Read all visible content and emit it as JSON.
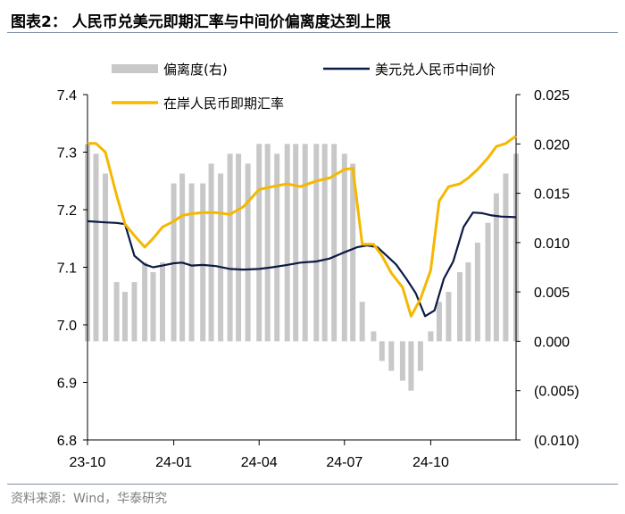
{
  "header": {
    "title": "图表2：  人民币兑美元即期汇率与中间价偏离度达到上限"
  },
  "footer": {
    "source": "资料来源：Wind，华泰研究"
  },
  "chart_data": {
    "type": "line",
    "title": "图表2：  人民币兑美元即期汇率与中间价偏离度达到上限",
    "left_axis": {
      "min": 6.8,
      "max": 7.4,
      "ticks": [
        "6.8",
        "6.9",
        "7.0",
        "7.1",
        "7.2",
        "7.3",
        "7.4"
      ]
    },
    "right_axis": {
      "min": -0.01,
      "max": 0.025,
      "ticks": [
        "(0.010)",
        "(0.005)",
        "0.000",
        "0.005",
        "0.010",
        "0.015",
        "0.020",
        "0.025"
      ]
    },
    "x_ticks": [
      "23-10",
      "24-01",
      "24-04",
      "24-07",
      "24-10"
    ],
    "x_range": [
      "2023-10-01",
      "2024-12-31"
    ],
    "grid": false,
    "legend_position": "top",
    "series": [
      {
        "name": "偏离度(右)",
        "type": "bar",
        "axis": "right",
        "color": "#c8c8c8",
        "x": [
          "2023-10-01",
          "2023-10-10",
          "2023-10-20",
          "2023-11-01",
          "2023-11-10",
          "2023-11-20",
          "2023-12-01",
          "2023-12-10",
          "2023-12-20",
          "2024-01-01",
          "2024-01-10",
          "2024-01-20",
          "2024-02-01",
          "2024-02-10",
          "2024-02-20",
          "2024-03-01",
          "2024-03-10",
          "2024-03-20",
          "2024-04-01",
          "2024-04-10",
          "2024-04-20",
          "2024-05-01",
          "2024-05-10",
          "2024-05-20",
          "2024-06-01",
          "2024-06-10",
          "2024-06-20",
          "2024-07-01",
          "2024-07-10",
          "2024-07-20",
          "2024-08-01",
          "2024-08-10",
          "2024-08-20",
          "2024-09-01",
          "2024-09-10",
          "2024-09-20",
          "2024-10-01",
          "2024-10-10",
          "2024-10-20",
          "2024-11-01",
          "2024-11-10",
          "2024-11-20",
          "2024-12-01",
          "2024-12-10",
          "2024-12-20",
          "2024-12-31"
        ],
        "values": [
          0.02,
          0.019,
          0.017,
          0.006,
          0.005,
          0.006,
          0.008,
          0.007,
          0.008,
          0.016,
          0.017,
          0.016,
          0.016,
          0.018,
          0.017,
          0.019,
          0.019,
          0.018,
          0.02,
          0.02,
          0.019,
          0.02,
          0.02,
          0.02,
          0.02,
          0.02,
          0.02,
          0.019,
          0.018,
          0.004,
          0.001,
          -0.002,
          -0.003,
          -0.004,
          -0.005,
          -0.003,
          0.001,
          0.004,
          0.005,
          0.007,
          0.008,
          0.01,
          0.012,
          0.015,
          0.017,
          0.019
        ]
      },
      {
        "name": "美元兑人民币中间价",
        "type": "line",
        "axis": "left",
        "color": "#0c1b45",
        "x": [
          "2023-10-01",
          "2023-10-20",
          "2023-11-01",
          "2023-11-10",
          "2023-11-20",
          "2023-12-01",
          "2023-12-10",
          "2023-12-20",
          "2024-01-01",
          "2024-01-10",
          "2024-01-20",
          "2024-02-01",
          "2024-02-15",
          "2024-03-01",
          "2024-03-15",
          "2024-04-01",
          "2024-04-15",
          "2024-05-01",
          "2024-05-15",
          "2024-06-01",
          "2024-06-15",
          "2024-07-01",
          "2024-07-15",
          "2024-07-25",
          "2024-08-05",
          "2024-08-15",
          "2024-08-25",
          "2024-09-05",
          "2024-09-15",
          "2024-09-25",
          "2024-10-05",
          "2024-10-15",
          "2024-10-25",
          "2024-11-05",
          "2024-11-15",
          "2024-11-25",
          "2024-12-05",
          "2024-12-15",
          "2024-12-31"
        ],
        "values": [
          7.18,
          7.178,
          7.177,
          7.175,
          7.12,
          7.105,
          7.1,
          7.103,
          7.107,
          7.108,
          7.103,
          7.104,
          7.102,
          7.097,
          7.096,
          7.097,
          7.1,
          7.104,
          7.108,
          7.11,
          7.115,
          7.126,
          7.135,
          7.138,
          7.135,
          7.12,
          7.105,
          7.08,
          7.055,
          7.015,
          7.025,
          7.08,
          7.11,
          7.17,
          7.195,
          7.194,
          7.19,
          7.188,
          7.187
        ]
      },
      {
        "name": "在岸人民币即期汇率",
        "type": "line",
        "axis": "left",
        "color": "#f5b800",
        "x": [
          "2023-10-01",
          "2023-10-10",
          "2023-10-20",
          "2023-11-01",
          "2023-11-10",
          "2023-11-20",
          "2023-12-01",
          "2023-12-10",
          "2023-12-20",
          "2024-01-01",
          "2024-01-10",
          "2024-01-20",
          "2024-02-01",
          "2024-02-15",
          "2024-03-01",
          "2024-03-15",
          "2024-04-01",
          "2024-04-15",
          "2024-05-01",
          "2024-05-15",
          "2024-06-01",
          "2024-06-15",
          "2024-07-01",
          "2024-07-10",
          "2024-07-20",
          "2024-08-01",
          "2024-08-10",
          "2024-08-20",
          "2024-09-01",
          "2024-09-10",
          "2024-09-20",
          "2024-10-01",
          "2024-10-10",
          "2024-10-20",
          "2024-11-01",
          "2024-11-10",
          "2024-11-20",
          "2024-12-01",
          "2024-12-10",
          "2024-12-20",
          "2024-12-31"
        ],
        "values": [
          7.315,
          7.315,
          7.3,
          7.225,
          7.175,
          7.155,
          7.135,
          7.15,
          7.17,
          7.18,
          7.19,
          7.193,
          7.195,
          7.195,
          7.192,
          7.205,
          7.235,
          7.24,
          7.245,
          7.24,
          7.25,
          7.255,
          7.27,
          7.272,
          7.14,
          7.14,
          7.12,
          7.09,
          7.065,
          7.015,
          7.045,
          7.095,
          7.215,
          7.24,
          7.245,
          7.255,
          7.27,
          7.29,
          7.31,
          7.315,
          7.328
        ]
      }
    ]
  }
}
